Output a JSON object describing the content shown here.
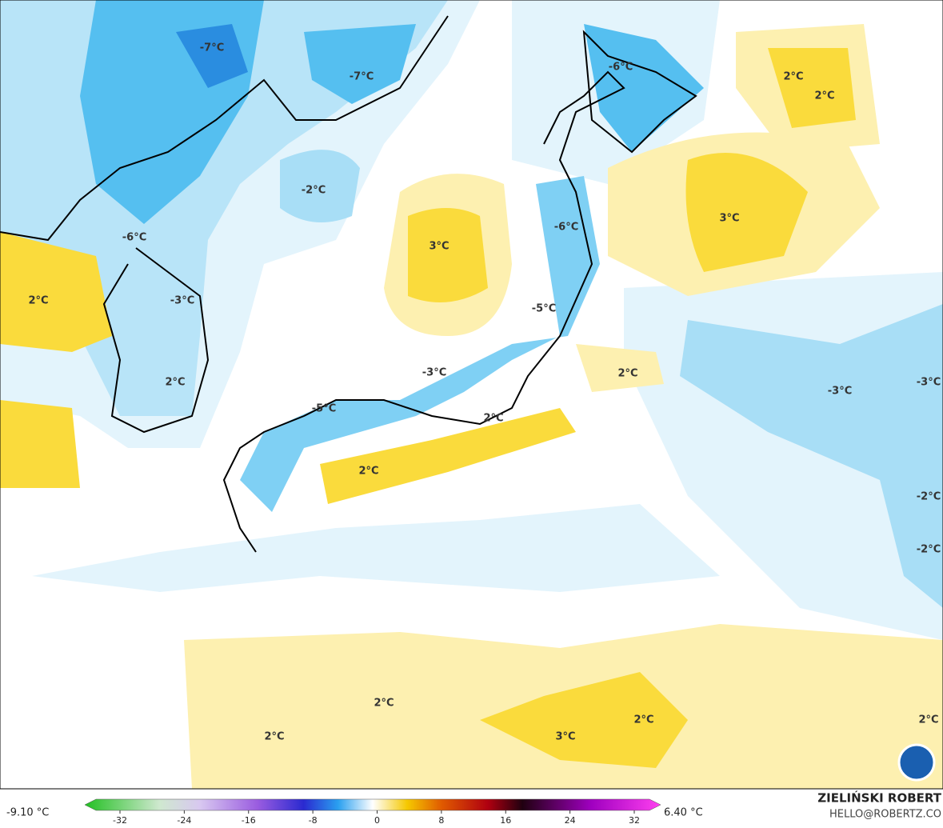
{
  "map": {
    "contour_labels": [
      "-7°C",
      "-7°C",
      "-6°C",
      "2°C",
      "2°C",
      "-2°C",
      "3°C",
      "3°C",
      "-6°C",
      "-6°C",
      "2°C",
      "-3°C",
      "-5°C",
      "-3°C",
      "2°C",
      "2°C",
      "-3°C",
      "-3°C",
      "-5°C",
      "2°C",
      "2°C",
      "-2°C",
      "-2°C",
      "2°C",
      "2°C",
      "3°C",
      "2°C",
      "2°C"
    ]
  },
  "colorbar": {
    "min_label": "-9.10 °C",
    "max_label": "6.40 °C",
    "ticks": [
      -32,
      -24,
      -16,
      -8,
      0,
      8,
      16,
      24,
      32
    ]
  },
  "credits": {
    "author": "ZIELIŃSKI ROBERT",
    "email": "HELLO@ROBERTZ.CO"
  }
}
